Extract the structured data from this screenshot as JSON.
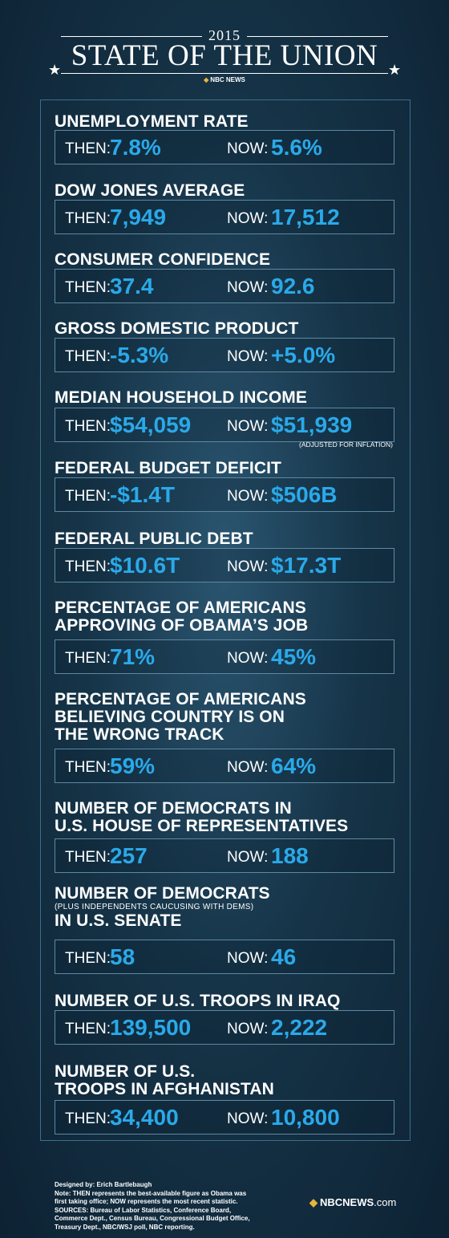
{
  "header": {
    "year": "2015",
    "title": "STATE OF THE UNION",
    "brand": "NBC NEWS",
    "star_glyph": "★"
  },
  "stats": [
    {
      "title_lines": [
        "UNEMPLOYMENT RATE"
      ],
      "then": "7.8%",
      "now": "5.6%"
    },
    {
      "title_lines": [
        "DOW JONES AVERAGE"
      ],
      "then": "7,949",
      "now": "17,512"
    },
    {
      "title_lines": [
        "CONSUMER CONFIDENCE"
      ],
      "then": "37.4",
      "now": "92.6"
    },
    {
      "title_lines": [
        "GROSS DOMESTIC PRODUCT"
      ],
      "then": "-5.3%",
      "now": "+5.0%"
    },
    {
      "title_lines": [
        "MEDIAN HOUSEHOLD INCOME"
      ],
      "then": "$54,059",
      "now": "$51,939",
      "note": "(ADJUSTED FOR INFLATION)"
    },
    {
      "title_lines": [
        "FEDERAL BUDGET DEFICIT"
      ],
      "then": "-$1.4T",
      "now": "$506B"
    },
    {
      "title_lines": [
        "FEDERAL PUBLIC DEBT"
      ],
      "then": "$10.6T",
      "now": "$17.3T"
    },
    {
      "title_lines": [
        "PERCENTAGE OF AMERICANS",
        "APPROVING OF OBAMA’S JOB"
      ],
      "then": "71%",
      "now": "45%"
    },
    {
      "title_lines": [
        "PERCENTAGE OF AMERICANS",
        "BELIEVING COUNTRY IS ON",
        "THE WRONG TRACK"
      ],
      "then": "59%",
      "now": "64%"
    },
    {
      "title_lines": [
        "NUMBER OF DEMOCRATS IN",
        "U.S. HOUSE OF REPRESENTATIVES"
      ],
      "then": "257",
      "now": "188"
    },
    {
      "title_lines": [
        "NUMBER OF DEMOCRATS",
        "IN U.S. SENATE"
      ],
      "subtitle": "(PLUS INDEPENDENTS CAUCUSING WITH DEMS)",
      "then": "58",
      "now": "46"
    },
    {
      "title_lines": [
        "NUMBER OF U.S. TROOPS IN IRAQ"
      ],
      "then": "139,500",
      "now": "2,222"
    },
    {
      "title_lines": [
        "NUMBER OF U.S.",
        "TROOPS IN AFGHANISTAN"
      ],
      "then": "34,400",
      "now": "10,800"
    }
  ],
  "labels": {
    "then": "THEN:",
    "now": "NOW:"
  },
  "footer": {
    "designer": "Designed by: Erich Bartlebaugh",
    "note_lines": [
      "Note: THEN represents the best-available figure as Obama was",
      "first taking office; NOW represents the most recent statistic.",
      " SOURCES: Bureau of Labor Statistics, Conference Board,",
      "Commerce Dept., Census Bureau, Congressional Budget Office,",
      "Treasury Dept., NBC/WSJ poll, NBC reporting."
    ],
    "brand_main": "NBCNEWS",
    "brand_suffix": ".com"
  },
  "colors": {
    "value_blue": "#2aa9e9",
    "background": "#163448",
    "peacock": "#e6b53a"
  },
  "icons": {
    "peacock": "nbc-peacock-icon",
    "star": "star-icon"
  }
}
